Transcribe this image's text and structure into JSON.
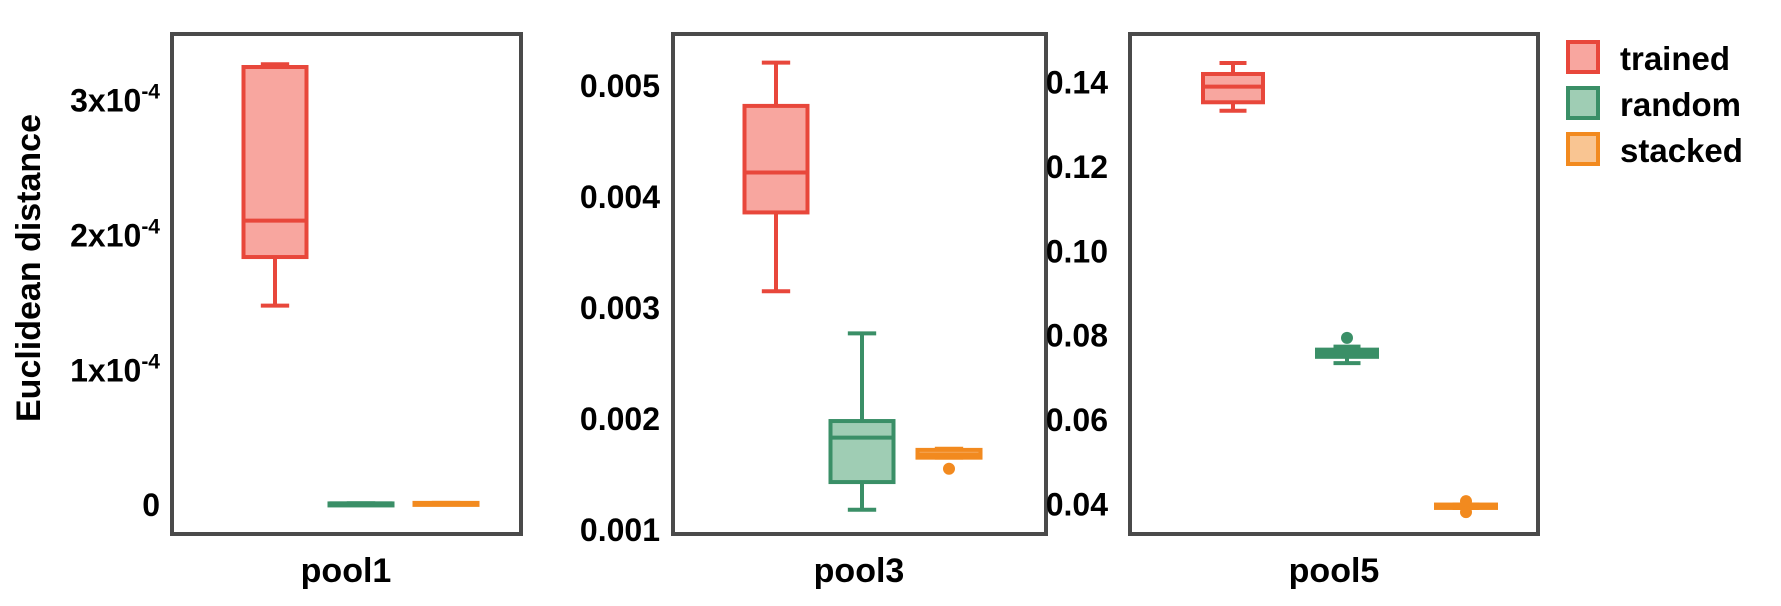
{
  "chart_data": [
    {
      "type": "box",
      "xlabel": "pool1",
      "ylabel": "Euclidean distance",
      "ylim": [
        -2e-05,
        0.000348
      ],
      "yticks": [
        {
          "value": 0,
          "base": "0",
          "sup": ""
        },
        {
          "value": 0.0001,
          "base": "1x10",
          "sup": "-4"
        },
        {
          "value": 0.0002,
          "base": "2x10",
          "sup": "-4"
        },
        {
          "value": 0.0003,
          "base": "3x10",
          "sup": "-4"
        }
      ],
      "series": [
        {
          "name": "trained",
          "whisker_low": 0.000148,
          "q1": 0.000184,
          "median": 0.000211,
          "q3": 0.000325,
          "whisker_high": 0.000327,
          "outliers": []
        },
        {
          "name": "random",
          "whisker_low": 1.2e-06,
          "q1": 1.2e-06,
          "median": 1.2e-06,
          "q3": 1.2e-06,
          "whisker_high": 1.2e-06,
          "outliers": []
        },
        {
          "name": "stacked",
          "whisker_low": 8e-07,
          "q1": 8e-07,
          "median": 1.2e-06,
          "q3": 1.6e-06,
          "whisker_high": 1.6e-06,
          "outliers": []
        }
      ]
    },
    {
      "type": "box",
      "xlabel": "pool3",
      "ylabel": "",
      "ylim": [
        0.00098,
        0.00545
      ],
      "yticks": [
        {
          "value": 0.001,
          "base": "0.001",
          "sup": ""
        },
        {
          "value": 0.002,
          "base": "0.002",
          "sup": ""
        },
        {
          "value": 0.003,
          "base": "0.003",
          "sup": ""
        },
        {
          "value": 0.004,
          "base": "0.004",
          "sup": ""
        },
        {
          "value": 0.005,
          "base": "0.005",
          "sup": ""
        }
      ],
      "series": [
        {
          "name": "trained",
          "whisker_low": 0.00315,
          "q1": 0.00386,
          "median": 0.00422,
          "q3": 0.00482,
          "whisker_high": 0.00521,
          "outliers": []
        },
        {
          "name": "random",
          "whisker_low": 0.00118,
          "q1": 0.00143,
          "median": 0.00183,
          "q3": 0.00198,
          "whisker_high": 0.00277,
          "outliers": []
        },
        {
          "name": "stacked",
          "whisker_low": 0.00165,
          "q1": 0.00165,
          "median": 0.00168,
          "q3": 0.00172,
          "whisker_high": 0.00173,
          "outliers": [
            0.00155
          ]
        }
      ]
    },
    {
      "type": "box",
      "xlabel": "pool5",
      "ylabel": "",
      "ylim": [
        0.0335,
        0.151
      ],
      "yticks": [
        {
          "value": 0.04,
          "base": "0.04",
          "sup": ""
        },
        {
          "value": 0.06,
          "base": "0.06",
          "sup": ""
        },
        {
          "value": 0.08,
          "base": "0.08",
          "sup": ""
        },
        {
          "value": 0.1,
          "base": "0.10",
          "sup": ""
        },
        {
          "value": 0.12,
          "base": "0.12",
          "sup": ""
        },
        {
          "value": 0.14,
          "base": "0.14",
          "sup": ""
        }
      ],
      "series": [
        {
          "name": "trained",
          "whisker_low": 0.1333,
          "q1": 0.1353,
          "median": 0.139,
          "q3": 0.142,
          "whisker_high": 0.1446,
          "outliers": []
        },
        {
          "name": "random",
          "whisker_low": 0.0735,
          "q1": 0.075,
          "median": 0.0758,
          "q3": 0.0767,
          "whisker_high": 0.0774,
          "outliers": [
            0.0795
          ]
        },
        {
          "name": "stacked",
          "whisker_low": 0.0392,
          "q1": 0.0392,
          "median": 0.0396,
          "q3": 0.04,
          "whisker_high": 0.04,
          "outliers": [
            0.0382,
            0.0408
          ]
        }
      ]
    }
  ],
  "legend": {
    "placement": "right",
    "entries": [
      "trained",
      "random",
      "stacked"
    ]
  },
  "colors": {
    "trained": {
      "stroke": "#e8473b",
      "fill": "#f8a69f"
    },
    "random": {
      "stroke": "#3a8f67",
      "fill": "#9fcdb4"
    },
    "stacked": {
      "stroke": "#f28a1f",
      "fill": "#f9c592"
    },
    "frame": "#4a4a4a"
  }
}
